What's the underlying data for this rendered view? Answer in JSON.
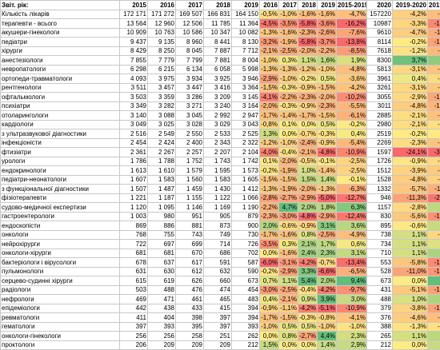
{
  "header": [
    "Звіт. рік:",
    "2015",
    "2016",
    "2017",
    "2018",
    "2019",
    "2016",
    "2017",
    "2018",
    "2019",
    "2015-2019",
    "2020",
    "2019-2020",
    "2015-2020"
  ],
  "rows": [
    {
      "name": "Кількість лікарів",
      "v": [
        "172 171",
        "171 272",
        "169 507",
        "166 831",
        "164 150"
      ],
      "p": [
        "-0,5%",
        "-1,0%",
        "-1,6%",
        "-1,6%",
        "-4,7%"
      ],
      "v2020": "157220",
      "p2": [
        "-4,2%",
        "-8,7%"
      ]
    },
    {
      "name": "терапевти - всього",
      "v": [
        "13 564",
        "12 960",
        "12 506",
        "11 785",
        "11 364"
      ],
      "p": [
        "-4,5%",
        "-3,5%",
        "-5,8%",
        "-3,6%",
        "-16,2%"
      ],
      "v2020": "10987",
      "p2": [
        "-3,3%",
        "-19,0%"
      ]
    },
    {
      "name": "акушери-гінекологи",
      "v": [
        "10 909",
        "10 763",
        "10 586",
        "10 347",
        "10 082"
      ],
      "p": [
        "-1,3%",
        "-1,6%",
        "-2,3%",
        "-2,6%",
        "-7,6%"
      ],
      "v2020": "9610",
      "p2": [
        "-4,7%",
        "-11,9%"
      ]
    },
    {
      "name": "педіатри",
      "v": [
        "9 437",
        "9 135",
        "8 960",
        "8 441",
        "8 130"
      ],
      "p": [
        "-3,2%",
        "-1,9%",
        "-5,8%",
        "-3,7%",
        "-13,8%"
      ],
      "v2020": "8114",
      "p2": [
        "-0,2%",
        "-14,0%"
      ]
    },
    {
      "name": "хірурги",
      "v": [
        "8 429",
        "8 250",
        "8 045",
        "7 887",
        "7 712"
      ],
      "p": [
        "-2,1%",
        "-2,5%",
        "-2,0%",
        "-2,2%",
        "-8,5%"
      ],
      "v2020": "7618",
      "p2": [
        "-1,2%",
        "-9,6%"
      ]
    },
    {
      "name": "анестезіологи",
      "v": [
        "7 855",
        "7 779",
        "7 799",
        "7 881",
        "8 004"
      ],
      "p": [
        "-1,0%",
        "0,3%",
        "1,1%",
        "1,6%",
        "1,9%"
      ],
      "v2020": "8300",
      "p2": [
        "3,7%",
        "5,7%"
      ]
    },
    {
      "name": "невропатологи",
      "v": [
        "6 298",
        "6 215",
        "6 134",
        "6 058",
        "5 998"
      ],
      "p": [
        "-1,3%",
        "-1,3%",
        "-1,2%",
        "-1,0%",
        "-4,8%"
      ],
      "v2020": "5813",
      "p2": [
        "-3,1%",
        "-7,7%"
      ]
    },
    {
      "name": "ортопеди-травматологи",
      "v": [
        "4 093",
        "3 975",
        "3 934",
        "3 925",
        "3 946"
      ],
      "p": [
        "-2,9%",
        "-1,0%",
        "-0,2%",
        "0,5%",
        "-3,6%"
      ],
      "v2020": "3961",
      "p2": [
        "0,4%",
        "-3,2%"
      ]
    },
    {
      "name": "рентгенологи",
      "v": [
        "3 511",
        "3 457",
        "3 447",
        "3 416",
        "3 364"
      ],
      "p": [
        "-1,5%",
        "-0,3%",
        "-0,9%",
        "-1,5%",
        "-4,2%"
      ],
      "v2020": "3261",
      "p2": [
        "-3,1%",
        "-7,1%"
      ]
    },
    {
      "name": "офтальмологи",
      "v": [
        "3 503",
        "3 359",
        "3 286",
        "3 209",
        "3 145"
      ],
      "p": [
        "-4,1%",
        "-2,2%",
        "-2,3%",
        "-2,0%",
        "-10,2%"
      ],
      "v2020": "3055",
      "p2": [
        "-2,9%",
        "-12,8%"
      ]
    },
    {
      "name": "психіатри",
      "v": [
        "3 349",
        "3 282",
        "3 271",
        "3 240",
        "3 164"
      ],
      "p": [
        "-2,0%",
        "-0,3%",
        "-0,9%",
        "-2,3%",
        "-5,5%"
      ],
      "v2020": "3011",
      "p2": [
        "-4,8%",
        "-10,1%"
      ]
    },
    {
      "name": "отоларингологи",
      "v": [
        "3 140",
        "3 088",
        "3 045",
        "2 992",
        "2 947"
      ],
      "p": [
        "-1,7%",
        "-1,4%",
        "-1,7%",
        "-1,5%",
        "-6,1%"
      ],
      "v2020": "2885",
      "p2": [
        "-2,1%",
        "-8,1%"
      ]
    },
    {
      "name": "кардіологи",
      "v": [
        "3 049",
        "3 025",
        "3 028",
        "3 029",
        "3 043"
      ],
      "p": [
        "-0,8%",
        "0,1%",
        "0,0%",
        "0,5%",
        "-0,2%"
      ],
      "v2020": "2980",
      "p2": [
        "-2,1%",
        "-2,3%"
      ]
    },
    {
      "name": "з ультразвукової діагностики",
      "v": [
        "2 516",
        "2 549",
        "2 550",
        "2 533",
        "2 525"
      ],
      "p": [
        "1,3%",
        "0,0%",
        "-0,7%",
        "-0,3%",
        "0,4%"
      ],
      "v2020": "2519",
      "p2": [
        "-0,2%",
        "0,1%"
      ]
    },
    {
      "name": "інфекціоністи",
      "v": [
        "2 454",
        "2 424",
        "2 400",
        "2 343",
        "2 322"
      ],
      "p": [
        "-1,2%",
        "-1,0%",
        "-2,4%",
        "-0,9%",
        "-5,4%"
      ],
      "v2020": "2269",
      "p2": [
        "-2,3%",
        "-7,5%"
      ]
    },
    {
      "name": "фтизіатри",
      "v": [
        "2 361",
        "2 267",
        "2 257",
        "2 207",
        "2 104"
      ],
      "p": [
        "-4,0%",
        "-0,4%",
        "-2,1%",
        "-4,8%",
        "-10,9%"
      ],
      "v2020": "1597",
      "p2": [
        "-24,1%",
        "-32,4%"
      ]
    },
    {
      "name": "урологи",
      "v": [
        "1 786",
        "1 788",
        "1 752",
        "1 743",
        "1 742"
      ],
      "p": [
        "0,1%",
        "-2,0%",
        "-0,5%",
        "-0,1%",
        "-2,5%"
      ],
      "v2020": "1726",
      "p2": [
        "-0,9%",
        "-3,4%"
      ]
    },
    {
      "name": "ендокринологи",
      "v": [
        "1 613",
        "1 610",
        "1 579",
        "1 595",
        "1 573"
      ],
      "p": [
        "-0,2%",
        "-1,9%",
        "1,0%",
        "-1,4%",
        "-2,5%"
      ],
      "v2020": "1512",
      "p2": [
        "-3,9%",
        "-6,3%"
      ]
    },
    {
      "name": "педіатри-неонатологи",
      "v": [
        "1 607",
        "1 583",
        "1 560",
        "1 583",
        "1 605"
      ],
      "p": [
        "-1,5%",
        "-1,5%",
        "1,5%",
        "1,4%",
        "-0,1%"
      ],
      "v2020": "1528",
      "p2": [
        "-4,8%",
        "-4,9%"
      ]
    },
    {
      "name": "з функціональної діагностики",
      "v": [
        "1 507",
        "1 487",
        "1 459",
        "1 430",
        "1 412"
      ],
      "p": [
        "-1,3%",
        "-1,9%",
        "-2,0%",
        "-1,3%",
        "-6,3%"
      ],
      "v2020": "1332",
      "p2": [
        "-5,7%",
        "-11,6%"
      ]
    },
    {
      "name": "фізіотерапевти",
      "v": [
        "1 221",
        "1 187",
        "1 155",
        "1 122",
        "1 066"
      ],
      "p": [
        "-2,8%",
        "-2,7%",
        "-2,9%",
        "-5,0%",
        "-12,7%"
      ],
      "v2020": "946",
      "p2": [
        "-11,3%",
        "-22,5%"
      ]
    },
    {
      "name": "судово-медичної експертизи",
      "v": [
        "1 120",
        "1 095",
        "1 146",
        "1 169",
        "1 190"
      ],
      "p": [
        "-2,2%",
        "4,7%",
        "2,0%",
        "1,8%",
        "6,3%"
      ],
      "v2020": "1157",
      "p2": [
        "-2,8%",
        "3,3%"
      ]
    },
    {
      "name": "гастроентерологи",
      "v": [
        "1 003",
        "980",
        "951",
        "905",
        "879"
      ],
      "p": [
        "-2,3%",
        "-3,0%",
        "-4,8%",
        "-2,9%",
        "-12,4%"
      ],
      "v2020": "830",
      "p2": [
        "-5,6%",
        "-17,2%"
      ]
    },
    {
      "name": "ендоскопісти",
      "v": [
        "869",
        "886",
        "881",
        "873",
        "900"
      ],
      "p": [
        "2,0%",
        "-0,6%",
        "-0,9%",
        "3,1%",
        "3,6%"
      ],
      "v2020": "895",
      "p2": [
        "-0,6%",
        "3,0%"
      ]
    },
    {
      "name": "онкологи",
      "v": [
        "768",
        "755",
        "743",
        "749",
        "730"
      ],
      "p": [
        "-1,7%",
        "-1,6%",
        "0,8%",
        "-2,5%",
        "-4,9%"
      ],
      "v2020": "738",
      "p2": [
        "1,1%",
        "-3,9%"
      ]
    },
    {
      "name": "нейрохірурги",
      "v": [
        "722",
        "697",
        "699",
        "714",
        "726"
      ],
      "p": [
        "-3,5%",
        "0,3%",
        "2,1%",
        "1,7%",
        "0,6%"
      ],
      "v2020": "734",
      "p2": [
        "1,1%",
        "1,7%"
      ]
    },
    {
      "name": "онкологи-хірурги",
      "v": [
        "681",
        "681",
        "670",
        "686",
        "702"
      ],
      "p": [
        "0,0%",
        "-1,6%",
        "2,4%",
        "2,3%",
        "3,1%"
      ],
      "v2020": "710",
      "p2": [
        "1,1%",
        "4,3%"
      ]
    },
    {
      "name": "бактеріологи і вірусологи",
      "v": [
        "678",
        "637",
        "617",
        "591",
        "587"
      ],
      "p": [
        "-6,0%",
        "-3,1%",
        "-4,2%",
        "-0,7%",
        "-13,4%"
      ],
      "v2020": "553",
      "p2": [
        "-5,8%",
        "-18,4%"
      ]
    },
    {
      "name": "пульмонологи",
      "v": [
        "631",
        "630",
        "612",
        "632",
        "590"
      ],
      "p": [
        "-0,2%",
        "-2,9%",
        "3,3%",
        "-6,6%",
        "-6,5%"
      ],
      "v2020": "528",
      "p2": [
        "-11,0%",
        "-16,3%"
      ]
    },
    {
      "name": "серцево-судинні хірурги",
      "v": [
        "615",
        "619",
        "626",
        "660",
        "673"
      ],
      "p": [
        "0,7%",
        "1,1%",
        "5,4%",
        "2,0%",
        "9,4%"
      ],
      "v2020": "673",
      "p2": [
        "0,0%",
        "9,4%"
      ]
    },
    {
      "name": "радіологи",
      "v": [
        "503",
        "488",
        "476",
        "474",
        "454"
      ],
      "p": [
        "-3,0%",
        "-2,5%",
        "-0,4%",
        "-4,2%",
        "-9,7%"
      ],
      "v2020": "431",
      "p2": [
        "-5,1%",
        "-14,3%"
      ]
    },
    {
      "name": "нефрологи",
      "v": [
        "469",
        "471",
        "461",
        "465",
        "483"
      ],
      "p": [
        "0,4%",
        "-2,1%",
        "0,9%",
        "3,9%",
        "3,0%"
      ],
      "v2020": "488",
      "p2": [
        "1,0%",
        "4,1%"
      ]
    },
    {
      "name": "епідеміологи",
      "v": [
        "442",
        "438",
        "433",
        "415",
        "394"
      ],
      "p": [
        "-0,9%",
        "-1,1%",
        "-4,2%",
        "-5,1%",
        "-10,9%"
      ],
      "v2020": "379",
      "p2": [
        "-3,8%",
        "-14,3%"
      ]
    },
    {
      "name": "ревматологи",
      "v": [
        "411",
        "404",
        "398",
        "397",
        "394"
      ],
      "p": [
        "-1,7%",
        "-1,5%",
        "-0,3%",
        "-0,8%",
        "-4,1%"
      ],
      "v2020": "376",
      "p2": [
        "-4,6%",
        "-8,5%"
      ]
    },
    {
      "name": "гематологи",
      "v": [
        "397",
        "393",
        "395",
        "397",
        "393"
      ],
      "p": [
        "-1,0%",
        "0,5%",
        "0,5%",
        "-1,0%",
        "-1,0%"
      ],
      "v2020": "388",
      "p2": [
        "-1,3%",
        "-2,3%"
      ]
    },
    {
      "name": "онкологи-гінекологи",
      "v": [
        "256",
        "256",
        "258",
        "251",
        "262"
      ],
      "p": [
        "0,0%",
        "0,8%",
        "-2,7%",
        "4,4%",
        "2,3%"
      ],
      "v2020": "265",
      "p2": [
        "1,1%",
        "3,5%"
      ]
    },
    {
      "name": "проктологи",
      "v": [
        "206",
        "209",
        "209",
        "209",
        "212"
      ],
      "p": [
        "1,5%",
        "0,0%",
        "0,0%",
        "1,4%",
        "2,9%"
      ],
      "v2020": "212",
      "p2": [
        "0,0%",
        "2,9%"
      ]
    }
  ]
}
